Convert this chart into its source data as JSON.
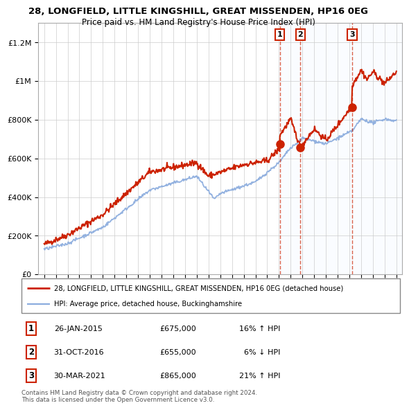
{
  "title": "28, LONGFIELD, LITTLE KINGSHILL, GREAT MISSENDEN, HP16 0EG",
  "subtitle": "Price paid vs. HM Land Registry's House Price Index (HPI)",
  "legend_line1": "28, LONGFIELD, LITTLE KINGSHILL, GREAT MISSENDEN, HP16 0EG (detached house)",
  "legend_line2": "HPI: Average price, detached house, Buckinghamshire",
  "footer": "Contains HM Land Registry data © Crown copyright and database right 2024.\nThis data is licensed under the Open Government Licence v3.0.",
  "price_line_color": "#cc2200",
  "hpi_line_color": "#88aadd",
  "vline_color": "#cc2200",
  "dot_color": "#cc2200",
  "label_bg_color": "#ddeeff",
  "label_border_color": "#cc2200",
  "shade_color": "#ddeeff",
  "ylim": [
    0,
    1300000
  ],
  "yticks": [
    0,
    200000,
    400000,
    600000,
    800000,
    1000000,
    1200000
  ],
  "ytick_labels": [
    "£0",
    "£200K",
    "£400K",
    "£600K",
    "£800K",
    "£1M",
    "£1.2M"
  ],
  "xstart": 1994.5,
  "xend": 2025.5,
  "grid_color": "#cccccc",
  "trans_years": [
    2015.07,
    2016.83,
    2021.24
  ],
  "trans_prices": [
    675000,
    655000,
    865000
  ],
  "trans_labels": [
    "1",
    "2",
    "3"
  ],
  "rows": [
    {
      "num": "1",
      "date": "26-JAN-2015",
      "price": "£675,000",
      "hpi": "16% ↑ HPI"
    },
    {
      "num": "2",
      "date": "31-OCT-2016",
      "price": "£655,000",
      "hpi": "  6% ↓ HPI"
    },
    {
      "num": "3",
      "date": "30-MAR-2021",
      "price": "£865,000",
      "hpi": "21% ↑ HPI"
    }
  ]
}
